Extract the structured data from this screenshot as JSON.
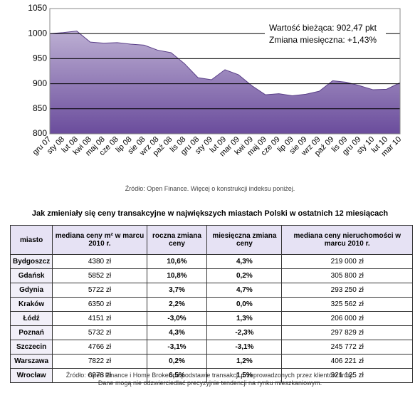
{
  "chart_data": {
    "type": "area",
    "categories": [
      "gru 07",
      "sty 08",
      "lut 08",
      "kwi 08",
      "maj 08",
      "cze 08",
      "lip 08",
      "sie 08",
      "wrz 08",
      "paź 08",
      "lis 08",
      "gru 08",
      "sty 09",
      "lut 09",
      "mar 09",
      "kwi 09",
      "maj 09",
      "cze 09",
      "lip 09",
      "sie 09",
      "wrz 09",
      "paź 09",
      "lis 09",
      "gru 09",
      "sty 10",
      "lut 10",
      "mar 10"
    ],
    "values": [
      1000,
      1002,
      1005,
      983,
      981,
      982,
      979,
      977,
      967,
      962,
      940,
      912,
      908,
      928,
      918,
      896,
      878,
      880,
      876,
      879,
      885,
      906,
      903,
      896,
      888,
      889,
      902
    ],
    "color": "#6a4c9c",
    "ylim": [
      800,
      1050
    ],
    "yticks": [
      800,
      850,
      900,
      950,
      1000,
      1050
    ],
    "grid": true,
    "annotations": [
      "Wartość bieżąca: 902,47 pkt",
      "Zmiana miesięczna: +1,43%"
    ]
  },
  "source": "Źródło: Open Finance. Więcej o konstrukcji indeksu poniżej.",
  "table": {
    "title": "Jak zmieniały się ceny transakcyjne w największych miastach Polski w ostatnich 12 miesiącach",
    "header": [
      "miasto",
      "mediana ceny m² w marcu 2010 r.",
      "roczna zmiana ceny",
      "miesięczna zmiana ceny",
      "mediana ceny nieruchomości w marcu 2010 r."
    ],
    "rows": [
      [
        "Bydgoszcz",
        "4380 zł",
        "10,6%",
        "4,3%",
        "219 000 zł"
      ],
      [
        "Gdańsk",
        "5852 zł",
        "10,8%",
        "0,2%",
        "305 800 zł"
      ],
      [
        "Gdynia",
        "5722 zł",
        "3,7%",
        "4,7%",
        "293 250 zł"
      ],
      [
        "Kraków",
        "6350 zł",
        "2,2%",
        "0,0%",
        "325 562 zł"
      ],
      [
        "Łódź",
        "4151 zł",
        "-3,0%",
        "1,3%",
        "206 000 zł"
      ],
      [
        "Poznań",
        "5732 zł",
        "4,3%",
        "-2,3%",
        "297 829 zł"
      ],
      [
        "Szczecin",
        "4766 zł",
        "-3,1%",
        "-3,1%",
        "245 772 zł"
      ],
      [
        "Warszawa",
        "7822 zł",
        "0,2%",
        "1,2%",
        "406 221 zł"
      ],
      [
        "Wrocław",
        "6278 zł",
        "6,5%",
        "1,5%",
        "321 125 zł"
      ]
    ],
    "footer": [
      "Źródło: Open Finance i Home Broker na podstawie transakcji przeprowadzonych przez klientów firmy.",
      "Dane mogą nie odzwierciedlać precyzyjnie tendencji na rynku mieszkaniowym."
    ]
  }
}
